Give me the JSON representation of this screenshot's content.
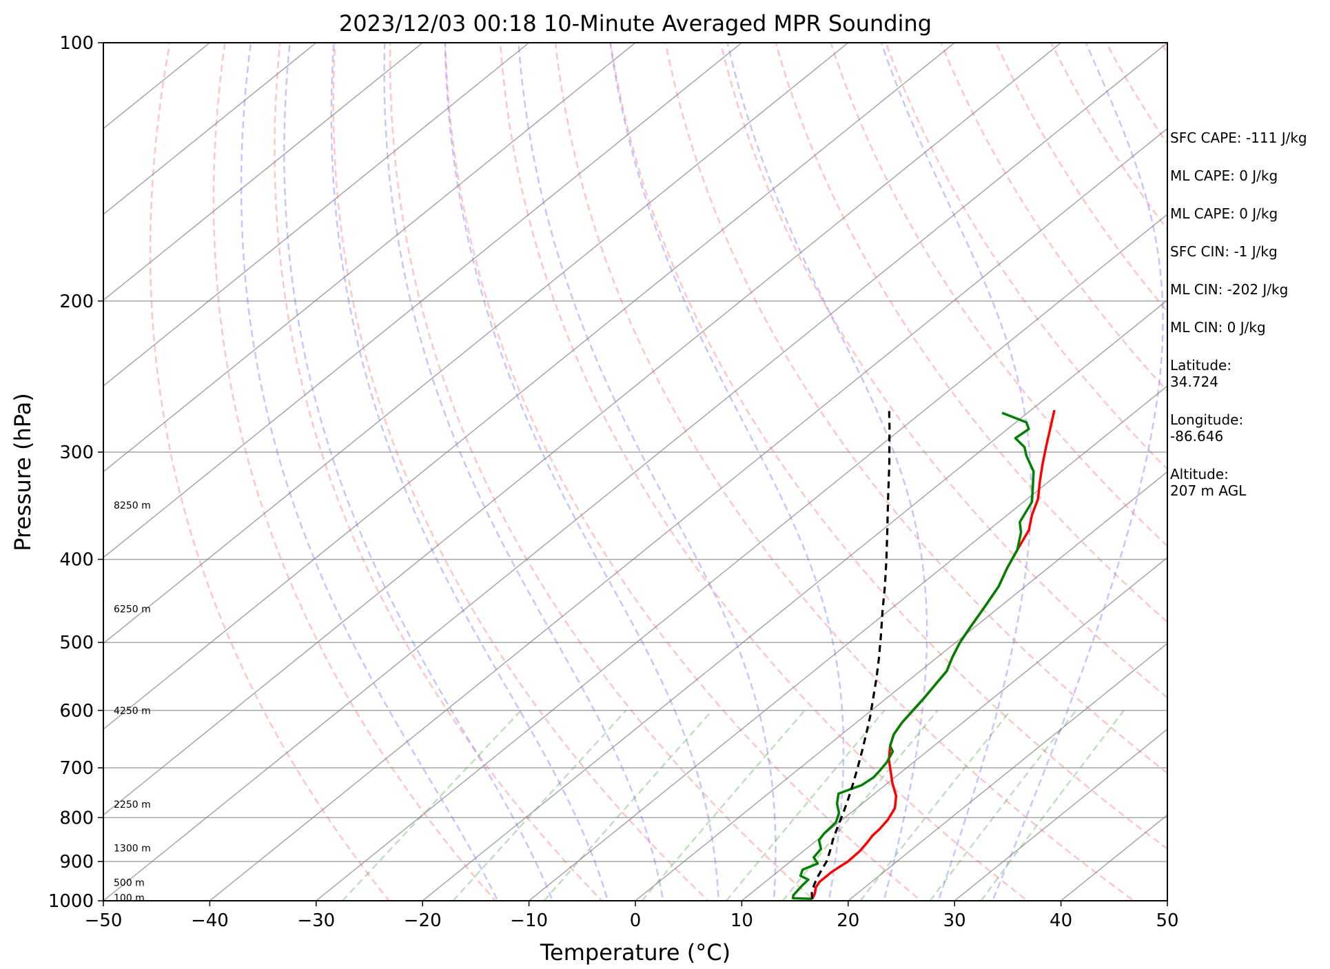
{
  "chart_data": {
    "type": "line",
    "title": "2023/12/03 00:18 10-Minute Averaged MPR Sounding",
    "xlabel": "Temperature (°C)",
    "ylabel": "Pressure (hPa)",
    "xlim": [
      -50,
      50
    ],
    "ylim": [
      1000,
      100
    ],
    "y_scale": "log",
    "skew": "isotherms slanted toward upper right",
    "x_ticks": [
      "−50",
      "−40",
      "−30",
      "−20",
      "−10",
      "0",
      "10",
      "20",
      "30",
      "40",
      "50"
    ],
    "y_ticks": [
      "100",
      "200",
      "300",
      "400",
      "500",
      "600",
      "700",
      "800",
      "900",
      "1000"
    ],
    "grid": true,
    "series": [
      {
        "role": "temperature",
        "color": "#ff0000",
        "points": [
          [
            16.4,
            995
          ],
          [
            16.0,
            980
          ],
          [
            15.4,
            965
          ],
          [
            15.1,
            950
          ],
          [
            15.1,
            925
          ],
          [
            15.4,
            900
          ],
          [
            15.3,
            875
          ],
          [
            15.0,
            855
          ],
          [
            14.7,
            840
          ],
          [
            14.6,
            825
          ],
          [
            14.3,
            805
          ],
          [
            13.6,
            780
          ],
          [
            12.3,
            755
          ],
          [
            10.5,
            730
          ],
          [
            8.8,
            705
          ],
          [
            7.4,
            685
          ],
          [
            5.9,
            660
          ],
          [
            4.9,
            640
          ],
          [
            4.3,
            620
          ],
          [
            3.9,
            600
          ],
          [
            3.5,
            580
          ],
          [
            3.0,
            560
          ],
          [
            2.5,
            540
          ],
          [
            1.4,
            520
          ],
          [
            0.4,
            500
          ],
          [
            -0.4,
            480
          ],
          [
            -1.4,
            455
          ],
          [
            -2.5,
            430
          ],
          [
            -3.8,
            410
          ],
          [
            -5.0,
            390
          ],
          [
            -6.2,
            370
          ],
          [
            -7.7,
            355
          ],
          [
            -9.0,
            340
          ],
          [
            -10.8,
            325
          ],
          [
            -12.6,
            310
          ],
          [
            -14.4,
            295
          ],
          [
            -16.0,
            282
          ],
          [
            -17.8,
            268
          ]
        ]
      },
      {
        "role": "dewpoint",
        "color": "#008000",
        "points": [
          [
            16.4,
            995
          ],
          [
            14.5,
            993
          ],
          [
            14.2,
            985
          ],
          [
            13.9,
            960
          ],
          [
            13.8,
            945
          ],
          [
            12.6,
            935
          ],
          [
            12.1,
            920
          ],
          [
            12.8,
            905
          ],
          [
            11.7,
            890
          ],
          [
            11.4,
            870
          ],
          [
            10.8,
            860
          ],
          [
            10.2,
            850
          ],
          [
            9.9,
            835
          ],
          [
            9.7,
            810
          ],
          [
            8.9,
            790
          ],
          [
            7.6,
            770
          ],
          [
            6.6,
            750
          ],
          [
            7.8,
            733
          ],
          [
            8.0,
            718
          ],
          [
            7.8,
            705
          ],
          [
            7.5,
            690
          ],
          [
            6.8,
            670
          ],
          [
            5.9,
            660
          ],
          [
            4.9,
            640
          ],
          [
            4.3,
            620
          ],
          [
            3.9,
            600
          ],
          [
            3.5,
            580
          ],
          [
            3.0,
            560
          ],
          [
            2.5,
            540
          ],
          [
            1.4,
            520
          ],
          [
            0.4,
            500
          ],
          [
            -0.4,
            480
          ],
          [
            -1.4,
            455
          ],
          [
            -2.5,
            430
          ],
          [
            -3.8,
            410
          ],
          [
            -5.0,
            390
          ],
          [
            -6.7,
            372
          ],
          [
            -8.0,
            362
          ],
          [
            -9.2,
            343
          ],
          [
            -10.8,
            330
          ],
          [
            -12.6,
            316
          ],
          [
            -15.1,
            303
          ],
          [
            -16.3,
            296
          ],
          [
            -18.2,
            289
          ],
          [
            -18.0,
            282
          ],
          [
            -19.0,
            277
          ],
          [
            -22.4,
            270
          ]
        ]
      },
      {
        "role": "parcel profile",
        "color": "#000000",
        "style": "dashed",
        "points": [
          [
            16.4,
            995
          ],
          [
            15.7,
            980
          ],
          [
            15.0,
            960
          ],
          [
            14.4,
            940
          ],
          [
            13.9,
            920
          ],
          [
            13.4,
            900
          ],
          [
            12.5,
            875
          ],
          [
            11.5,
            850
          ],
          [
            10.4,
            820
          ],
          [
            9.3,
            790
          ],
          [
            8.1,
            760
          ],
          [
            6.8,
            730
          ],
          [
            5.4,
            700
          ],
          [
            3.9,
            670
          ],
          [
            2.3,
            640
          ],
          [
            0.6,
            610
          ],
          [
            -1.3,
            580
          ],
          [
            -3.3,
            550
          ],
          [
            -5.5,
            520
          ],
          [
            -7.9,
            490
          ],
          [
            -10.5,
            460
          ],
          [
            -13.2,
            430
          ],
          [
            -16.2,
            400
          ],
          [
            -19.5,
            370
          ],
          [
            -23.1,
            340
          ],
          [
            -27.0,
            310
          ],
          [
            -31.4,
            280
          ],
          [
            -33.5,
            267
          ]
        ]
      }
    ],
    "dry_adiabats_K": [
      250,
      260,
      270,
      280,
      290,
      300,
      310,
      320,
      330,
      340,
      350,
      360,
      370,
      380,
      390,
      400,
      410,
      420,
      430
    ],
    "moist_adiabats_start_C": [
      -10,
      -5,
      0,
      5,
      10,
      15,
      20,
      25,
      30,
      35
    ],
    "mixing_ratio_lines": true,
    "height_labels": [
      {
        "text": "100 m",
        "pressure": 992
      },
      {
        "text": "500 m",
        "pressure": 952
      },
      {
        "text": "1300 m",
        "pressure": 868
      },
      {
        "text": "2250 m",
        "pressure": 772
      },
      {
        "text": "4250 m",
        "pressure": 600
      },
      {
        "text": "6250 m",
        "pressure": 457
      },
      {
        "text": "8250 m",
        "pressure": 346
      }
    ]
  },
  "stats": [
    "SFC CAPE: -111 J/kg",
    "ML CAPE: 0 J/kg",
    "ML CAPE: 0 J/kg",
    "SFC CIN: -1 J/kg",
    "ML CIN: -202 J/kg",
    "ML CIN: 0 J/kg",
    "Latitude:\n34.724",
    "Longitude:\n-86.646",
    "Altitude:\n207 m AGL"
  ]
}
